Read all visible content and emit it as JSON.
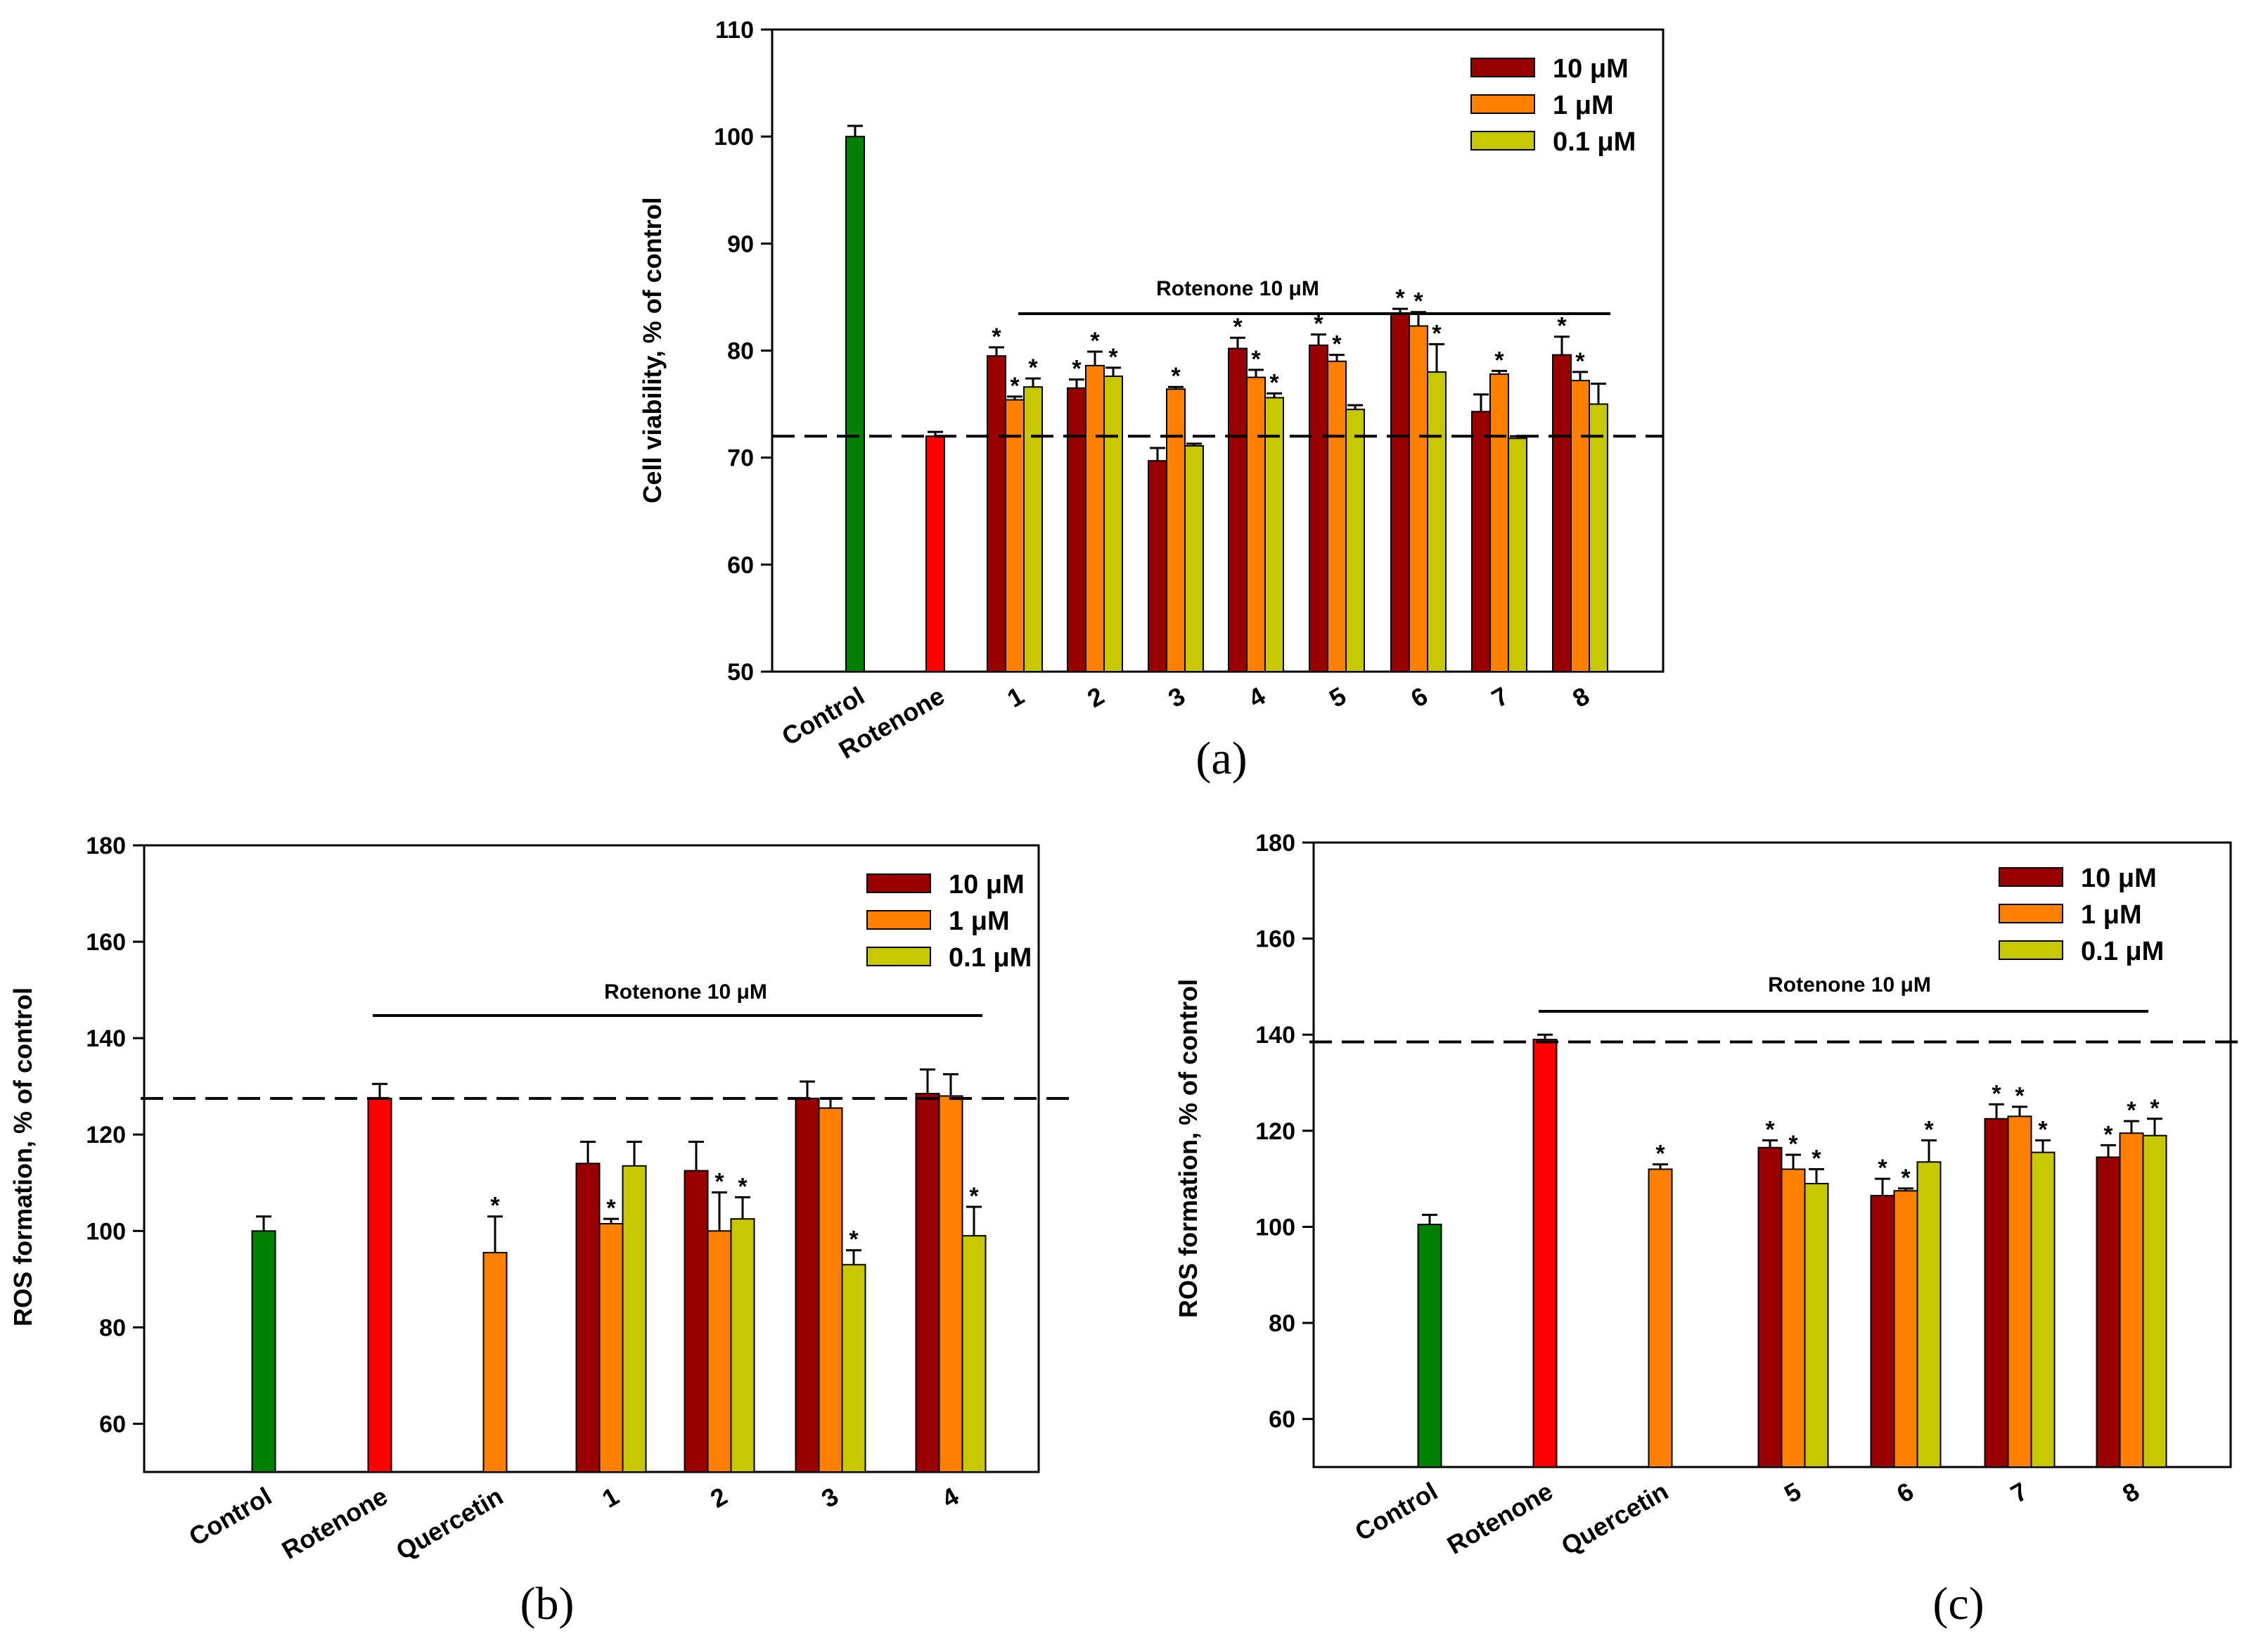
{
  "colors": {
    "dose_10": "#990000",
    "dose_1": "#FF8000",
    "dose_01": "#C8C800",
    "control": "#008000",
    "rotenone": "#FF0000"
  },
  "chart_data": [
    {
      "panel_label": "(a)",
      "type": "bar",
      "ylabel": "Cell viability, % of control",
      "ylim": [
        50,
        110
      ],
      "yticks": [
        50,
        60,
        70,
        80,
        90,
        100,
        110
      ],
      "legend": [
        "10 μM",
        "1 μM",
        "0.1 μM"
      ],
      "legend_position": "top-right",
      "bracket_label": "Rotenone 10 μM",
      "reference_line": 72,
      "groups": [
        {
          "label": "Control",
          "bars": [
            {
              "dose": "control",
              "value": 100,
              "err": 1
            }
          ]
        },
        {
          "label": "Rotenone",
          "bars": [
            {
              "dose": "rotenone",
              "value": 72,
              "err": 0.4
            }
          ]
        },
        {
          "label": "1",
          "bars": [
            {
              "dose": "10",
              "value": 79.5,
              "err": 0.8,
              "star": true
            },
            {
              "dose": "1",
              "value": 75.4,
              "err": 0.3,
              "star": true
            },
            {
              "dose": "0.1",
              "value": 76.6,
              "err": 0.8,
              "star": true
            }
          ]
        },
        {
          "label": "2",
          "bars": [
            {
              "dose": "10",
              "value": 76.5,
              "err": 0.8,
              "star": true
            },
            {
              "dose": "1",
              "value": 78.6,
              "err": 1.3,
              "star": true
            },
            {
              "dose": "0.1",
              "value": 77.6,
              "err": 0.8,
              "star": true
            }
          ]
        },
        {
          "label": "3",
          "bars": [
            {
              "dose": "10",
              "value": 69.7,
              "err": 1.2,
              "star": false
            },
            {
              "dose": "1",
              "value": 76.4,
              "err": 0.2,
              "star": true
            },
            {
              "dose": "0.1",
              "value": 71.1,
              "err": 0.2,
              "star": false
            }
          ]
        },
        {
          "label": "4",
          "bars": [
            {
              "dose": "10",
              "value": 80.2,
              "err": 1.0,
              "star": true
            },
            {
              "dose": "1",
              "value": 77.5,
              "err": 0.7,
              "star": true
            },
            {
              "dose": "0.1",
              "value": 75.6,
              "err": 0.4,
              "star": true
            }
          ]
        },
        {
          "label": "5",
          "bars": [
            {
              "dose": "10",
              "value": 80.5,
              "err": 1.0,
              "star": true
            },
            {
              "dose": "1",
              "value": 79,
              "err": 0.6,
              "star": true
            },
            {
              "dose": "0.1",
              "value": 74.5,
              "err": 0.4,
              "star": false
            }
          ]
        },
        {
          "label": "6",
          "bars": [
            {
              "dose": "10",
              "value": 83.5,
              "err": 0.4,
              "star": true
            },
            {
              "dose": "1",
              "value": 82.3,
              "err": 1.3,
              "star": true
            },
            {
              "dose": "0.1",
              "value": 78,
              "err": 2.6,
              "star": true
            }
          ]
        },
        {
          "label": "7",
          "bars": [
            {
              "dose": "10",
              "value": 74.3,
              "err": 1.6,
              "star": false
            },
            {
              "dose": "1",
              "value": 77.8,
              "err": 0.3,
              "star": true
            },
            {
              "dose": "0.1",
              "value": 71.8,
              "err": 0.2,
              "star": false
            }
          ]
        },
        {
          "label": "8",
          "bars": [
            {
              "dose": "10",
              "value": 79.6,
              "err": 1.7,
              "star": true
            },
            {
              "dose": "1",
              "value": 77.2,
              "err": 0.8,
              "star": true
            },
            {
              "dose": "0.1",
              "value": 75,
              "err": 1.9,
              "star": false
            }
          ]
        }
      ]
    },
    {
      "panel_label": "(b)",
      "type": "bar",
      "ylabel": "ROS formation, % of control",
      "ylim": [
        50,
        180
      ],
      "yticks": [
        60,
        80,
        100,
        120,
        140,
        160,
        180
      ],
      "legend": [
        "10 μM",
        "1 μM",
        "0.1 μM"
      ],
      "legend_position": "top-right",
      "bracket_label": "Rotenone 10 μM",
      "reference_line": 127.5,
      "groups": [
        {
          "label": "Control",
          "bars": [
            {
              "dose": "control",
              "value": 100,
              "err": 3
            }
          ]
        },
        {
          "label": "Rotenone",
          "bars": [
            {
              "dose": "rotenone",
              "value": 127.5,
              "err": 3
            }
          ]
        },
        {
          "label": "Quercetin",
          "bars": [
            {
              "dose": "1",
              "value": 95.5,
              "err": 7.5,
              "star": true
            }
          ]
        },
        {
          "label": "1",
          "bars": [
            {
              "dose": "10",
              "value": 114,
              "err": 4.5,
              "star": false
            },
            {
              "dose": "1",
              "value": 101.5,
              "err": 1,
              "star": true
            },
            {
              "dose": "0.1",
              "value": 113.5,
              "err": 5,
              "star": false
            }
          ]
        },
        {
          "label": "2",
          "bars": [
            {
              "dose": "10",
              "value": 112.5,
              "err": 6,
              "star": false
            },
            {
              "dose": "1",
              "value": 100,
              "err": 8,
              "star": true
            },
            {
              "dose": "0.1",
              "value": 102.5,
              "err": 4.5,
              "star": true
            }
          ]
        },
        {
          "label": "3",
          "bars": [
            {
              "dose": "10",
              "value": 127.5,
              "err": 3.5,
              "star": false
            },
            {
              "dose": "1",
              "value": 125.5,
              "err": 2,
              "star": false
            },
            {
              "dose": "0.1",
              "value": 93,
              "err": 3,
              "star": true
            }
          ]
        },
        {
          "label": "4",
          "bars": [
            {
              "dose": "10",
              "value": 128.5,
              "err": 5,
              "star": false
            },
            {
              "dose": "1",
              "value": 128,
              "err": 4.5,
              "star": false
            },
            {
              "dose": "0.1",
              "value": 99,
              "err": 6,
              "star": true
            }
          ]
        }
      ]
    },
    {
      "panel_label": "(c)",
      "type": "bar",
      "ylabel": "ROS formation, % of control",
      "ylim": [
        50,
        180
      ],
      "yticks": [
        60,
        80,
        100,
        120,
        140,
        160,
        180
      ],
      "legend": [
        "10 μM",
        "1 μM",
        "0.1 μM"
      ],
      "legend_position": "top-right",
      "bracket_label": "Rotenone 10 μM",
      "reference_line": 138.5,
      "groups": [
        {
          "label": "Control",
          "bars": [
            {
              "dose": "control",
              "value": 100.5,
              "err": 2
            }
          ]
        },
        {
          "label": "Rotenone",
          "bars": [
            {
              "dose": "rotenone",
              "value": 139,
              "err": 1
            }
          ]
        },
        {
          "label": "Quercetin",
          "bars": [
            {
              "dose": "1",
              "value": 112,
              "err": 1,
              "star": true
            }
          ]
        },
        {
          "label": "5",
          "bars": [
            {
              "dose": "10",
              "value": 116.5,
              "err": 1.5,
              "star": true
            },
            {
              "dose": "1",
              "value": 112,
              "err": 3,
              "star": true
            },
            {
              "dose": "0.1",
              "value": 109,
              "err": 3,
              "star": true
            }
          ]
        },
        {
          "label": "6",
          "bars": [
            {
              "dose": "10",
              "value": 106.5,
              "err": 3.5,
              "star": true
            },
            {
              "dose": "1",
              "value": 107.5,
              "err": 0.5,
              "star": true
            },
            {
              "dose": "0.1",
              "value": 113.5,
              "err": 4.5,
              "star": true
            }
          ]
        },
        {
          "label": "7",
          "bars": [
            {
              "dose": "10",
              "value": 122.5,
              "err": 3,
              "star": true
            },
            {
              "dose": "1",
              "value": 123,
              "err": 2,
              "star": true
            },
            {
              "dose": "0.1",
              "value": 115.5,
              "err": 2.5,
              "star": true
            }
          ]
        },
        {
          "label": "8",
          "bars": [
            {
              "dose": "10",
              "value": 114.5,
              "err": 2.5,
              "star": true
            },
            {
              "dose": "1",
              "value": 119.5,
              "err": 2.5,
              "star": true
            },
            {
              "dose": "0.1",
              "value": 119,
              "err": 3.5,
              "star": true
            }
          ]
        }
      ]
    }
  ]
}
